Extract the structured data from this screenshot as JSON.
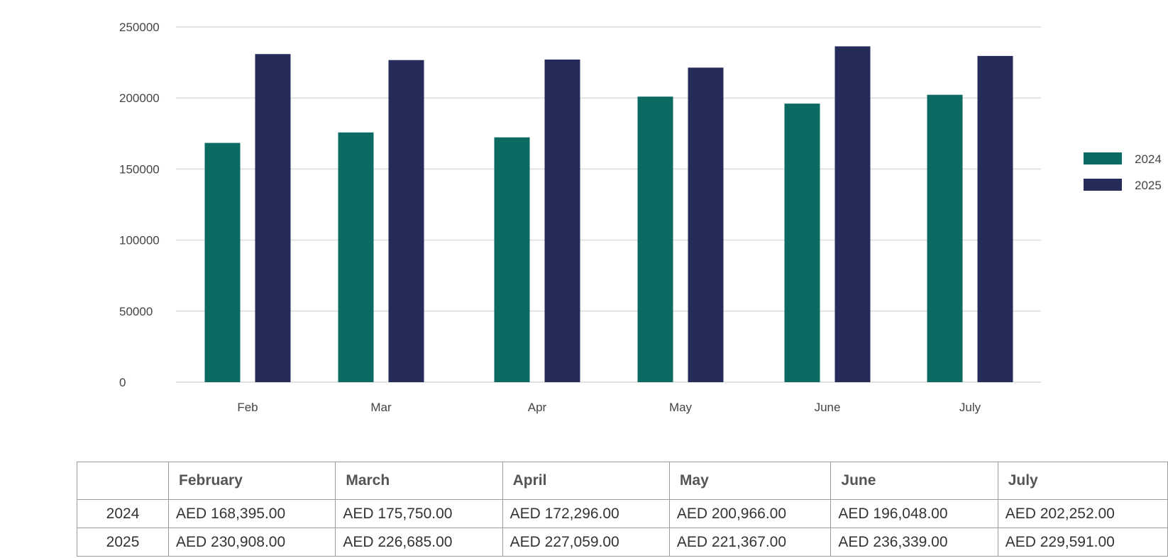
{
  "chart_data": {
    "type": "bar",
    "categories": [
      "Feb",
      "Mar",
      "Apr",
      "May",
      "June",
      "July"
    ],
    "series": [
      {
        "name": "2024",
        "values": [
          168395,
          175750,
          172296,
          200966,
          196048,
          202252
        ]
      },
      {
        "name": "2025",
        "values": [
          230908,
          226685,
          227059,
          221367,
          236339,
          229591
        ]
      }
    ],
    "yticks": [
      0,
      50000,
      100000,
      150000,
      200000,
      250000
    ],
    "ylim": [
      0,
      250000
    ],
    "grid": true,
    "legend_position": "right"
  },
  "colors": {
    "series_2024": "#0b6b63",
    "series_2025": "#252c5a",
    "grid": "#e2e2e2"
  },
  "table": {
    "headers": [
      "",
      "February",
      "March",
      "April",
      "May",
      "June",
      "July"
    ],
    "rows": [
      {
        "label": "2024",
        "cells": [
          "AED 168,395.00",
          "AED 175,750.00",
          "AED 172,296.00",
          "AED 200,966.00",
          "AED 196,048.00",
          "AED 202,252.00"
        ]
      },
      {
        "label": "2025",
        "cells": [
          "AED 230,908.00",
          "AED 226,685.00",
          "AED 227,059.00",
          "AED 221,367.00",
          "AED 236,339.00",
          "AED 229,591.00"
        ]
      }
    ]
  }
}
